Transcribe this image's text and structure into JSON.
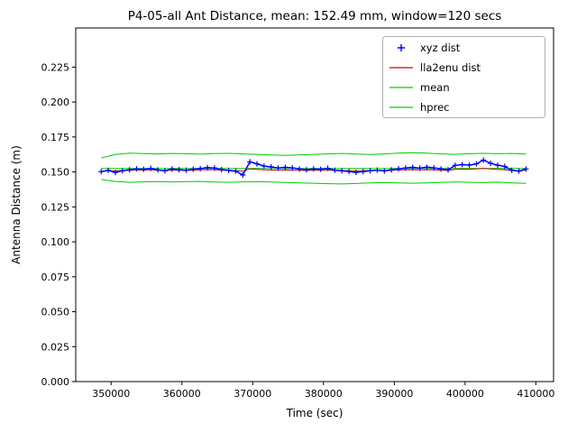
{
  "chart_data": {
    "type": "line+scatter",
    "title": "P4-05-all Ant Distance, mean: 152.49 mm, window=120 secs",
    "xlabel": "Time (sec)",
    "ylabel": "Antenna Distance (m)",
    "xlim": [
      345000,
      412500
    ],
    "ylim": [
      0,
      0.253
    ],
    "grid": false,
    "legend_position": "upper right",
    "xticks": [
      350000,
      360000,
      370000,
      380000,
      390000,
      400000,
      410000
    ],
    "xtick_labels": [
      "350000",
      "360000",
      "370000",
      "380000",
      "390000",
      "400000",
      "410000"
    ],
    "yticks": [
      0.0,
      0.025,
      0.05,
      0.075,
      0.1,
      0.125,
      0.15,
      0.175,
      0.2,
      0.225
    ],
    "ytick_labels": [
      "0.000",
      "0.025",
      "0.050",
      "0.075",
      "0.100",
      "0.125",
      "0.150",
      "0.175",
      "0.200",
      "0.225"
    ],
    "mean_value_m": 0.15249,
    "legend": [
      {
        "label": "xyz dist",
        "marker": "plus",
        "color": "#0000ff"
      },
      {
        "label": "lla2enu dist",
        "marker": "line",
        "color": "#cc0000"
      },
      {
        "label": "mean",
        "marker": "line",
        "color": "#00cc00"
      },
      {
        "label": "hprec",
        "marker": "line",
        "color": "#00cc00"
      }
    ],
    "shared_x": [
      348600,
      349600,
      350600,
      351600,
      352600,
      353600,
      354600,
      355600,
      356600,
      357600,
      358600,
      359600,
      360600,
      361600,
      362600,
      363600,
      364600,
      365600,
      366600,
      367600,
      368600,
      369600,
      370600,
      371600,
      372600,
      373600,
      374600,
      375600,
      376600,
      377600,
      378600,
      379600,
      380600,
      381600,
      382600,
      383600,
      384600,
      385600,
      386600,
      387600,
      388600,
      389600,
      390600,
      391600,
      392600,
      393600,
      394600,
      395600,
      396600,
      397600,
      398600,
      399600,
      400600,
      401600,
      402600,
      403600,
      404600,
      405600,
      406600,
      407600,
      408600
    ],
    "series": [
      {
        "name": "mean",
        "type": "hline",
        "color": "#00cc00",
        "y": 0.15249,
        "x_start": 348600,
        "x_end": 408600,
        "width": 1
      },
      {
        "name": "hprec_upper",
        "type": "line",
        "color": "#00cc00",
        "width": 1,
        "x": [
          348600,
          350600,
          352600,
          354600,
          356600,
          358600,
          360600,
          362600,
          364600,
          366600,
          368600,
          370600,
          372600,
          374600,
          376600,
          378600,
          380600,
          382600,
          384600,
          386600,
          388600,
          390600,
          392600,
          394600,
          396600,
          398600,
          400600,
          402600,
          404600,
          406600,
          408600
        ],
        "y": [
          0.16,
          0.1625,
          0.1634,
          0.1631,
          0.1629,
          0.1632,
          0.163,
          0.1627,
          0.1631,
          0.1633,
          0.1629,
          0.1626,
          0.1622,
          0.1618,
          0.1621,
          0.1626,
          0.1629,
          0.1632,
          0.1628,
          0.1625,
          0.1629,
          0.1634,
          0.1638,
          0.1634,
          0.1629,
          0.1626,
          0.163,
          0.1633,
          0.163,
          0.1632,
          0.1628
        ]
      },
      {
        "name": "hprec_lower",
        "type": "line",
        "color": "#00cc00",
        "width": 1,
        "x": [
          348600,
          350600,
          352600,
          354600,
          356600,
          358600,
          360600,
          362600,
          364600,
          366600,
          368600,
          370600,
          372600,
          374600,
          376600,
          378600,
          380600,
          382600,
          384600,
          386600,
          388600,
          390600,
          392600,
          394600,
          396600,
          398600,
          400600,
          402600,
          404600,
          406600,
          408600
        ],
        "y": [
          0.1446,
          0.1432,
          0.1426,
          0.1429,
          0.1431,
          0.1428,
          0.143,
          0.1432,
          0.1428,
          0.1426,
          0.1429,
          0.1431,
          0.1428,
          0.1425,
          0.1422,
          0.1419,
          0.1416,
          0.1414,
          0.1417,
          0.1421,
          0.1424,
          0.1422,
          0.1419,
          0.1422,
          0.1426,
          0.1428,
          0.1426,
          0.1424,
          0.1427,
          0.1422,
          0.1418
        ]
      },
      {
        "name": "lla2enu dist",
        "type": "line",
        "color": "#cc0000",
        "width": 1,
        "x": "shared",
        "y": [
          0.1505,
          0.1509,
          0.1507,
          0.151,
          0.1512,
          0.1514,
          0.1513,
          0.1515,
          0.1512,
          0.151,
          0.1513,
          0.1512,
          0.1511,
          0.1513,
          0.1515,
          0.1517,
          0.1516,
          0.1513,
          0.1511,
          0.1509,
          0.1505,
          0.1522,
          0.1518,
          0.1515,
          0.1514,
          0.1513,
          0.1514,
          0.1513,
          0.1512,
          0.1511,
          0.1513,
          0.1512,
          0.1514,
          0.1511,
          0.151,
          0.1508,
          0.1506,
          0.1508,
          0.151,
          0.1512,
          0.151,
          0.1512,
          0.1514,
          0.1515,
          0.1516,
          0.1515,
          0.1516,
          0.1515,
          0.1513,
          0.1511,
          0.1518,
          0.152,
          0.1519,
          0.1521,
          0.1526,
          0.1522,
          0.1518,
          0.1516,
          0.151,
          0.1508,
          0.1513
        ]
      },
      {
        "name": "xyz dist",
        "type": "scatter",
        "color": "#0000ff",
        "width": 1.5,
        "x": "shared",
        "y": [
          0.1502,
          0.1511,
          0.1496,
          0.1508,
          0.1515,
          0.1522,
          0.1519,
          0.1526,
          0.1514,
          0.1508,
          0.1521,
          0.1516,
          0.1512,
          0.1519,
          0.1524,
          0.1531,
          0.1528,
          0.1517,
          0.1511,
          0.1506,
          0.1478,
          0.1572,
          0.1558,
          0.1542,
          0.1536,
          0.1528,
          0.1533,
          0.1529,
          0.1521,
          0.1515,
          0.1522,
          0.1519,
          0.1526,
          0.1512,
          0.1508,
          0.1503,
          0.1497,
          0.1502,
          0.1509,
          0.1513,
          0.1507,
          0.1515,
          0.1522,
          0.1528,
          0.1533,
          0.1527,
          0.1534,
          0.1529,
          0.1521,
          0.1515,
          0.1547,
          0.1552,
          0.1549,
          0.1558,
          0.1585,
          0.1562,
          0.1548,
          0.1539,
          0.1512,
          0.1506,
          0.1521
        ]
      }
    ]
  }
}
